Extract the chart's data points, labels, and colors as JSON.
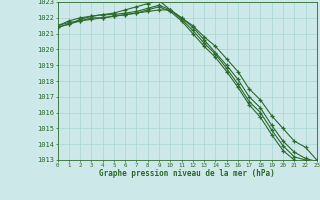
{
  "x": [
    0,
    1,
    2,
    3,
    4,
    5,
    6,
    7,
    8,
    9,
    10,
    11,
    12,
    13,
    14,
    15,
    16,
    17,
    18,
    19,
    20,
    21,
    22,
    23
  ],
  "line1": [
    1021.5,
    1021.7,
    1021.8,
    1022.0,
    1022.0,
    1022.1,
    1022.2,
    1022.3,
    1022.4,
    1022.5,
    1022.5,
    1022.0,
    1021.5,
    1020.8,
    1020.2,
    1019.4,
    1018.6,
    1017.5,
    1016.8,
    1015.8,
    1015.0,
    1014.2,
    1013.8,
    1013.0
  ],
  "line2": [
    1021.4,
    1021.6,
    1021.9,
    1022.1,
    1022.2,
    1022.3,
    1022.5,
    1022.7,
    1022.9,
    1023.1,
    1022.5,
    1022.0,
    1021.4,
    1020.6,
    1019.8,
    1019.0,
    1018.1,
    1017.0,
    1016.3,
    1015.2,
    1014.2,
    1013.5,
    1013.1,
    1012.9
  ],
  "line3": [
    1021.4,
    1021.6,
    1021.8,
    1021.9,
    1022.0,
    1022.1,
    1022.2,
    1022.3,
    1022.5,
    1022.7,
    1022.4,
    1021.8,
    1021.0,
    1020.2,
    1019.5,
    1018.6,
    1017.6,
    1016.5,
    1015.7,
    1014.6,
    1013.6,
    1013.0,
    1012.8,
    1012.7
  ],
  "line4": [
    1021.5,
    1021.8,
    1022.0,
    1022.1,
    1022.2,
    1022.2,
    1022.3,
    1022.4,
    1022.6,
    1022.8,
    1022.5,
    1021.9,
    1021.2,
    1020.4,
    1019.7,
    1018.8,
    1017.8,
    1016.7,
    1016.0,
    1014.9,
    1013.9,
    1013.2,
    1013.0,
    1012.8
  ],
  "line_color": "#2d6a2d",
  "bg_color": "#cce8e8",
  "grid_major_color": "#aad4d4",
  "grid_minor_color": "#bde0e0",
  "text_color": "#2d6a2d",
  "xlabel": "Graphe pression niveau de la mer (hPa)",
  "ylim_min": 1013,
  "ylim_max": 1023,
  "xlim_min": 0,
  "xlim_max": 23
}
